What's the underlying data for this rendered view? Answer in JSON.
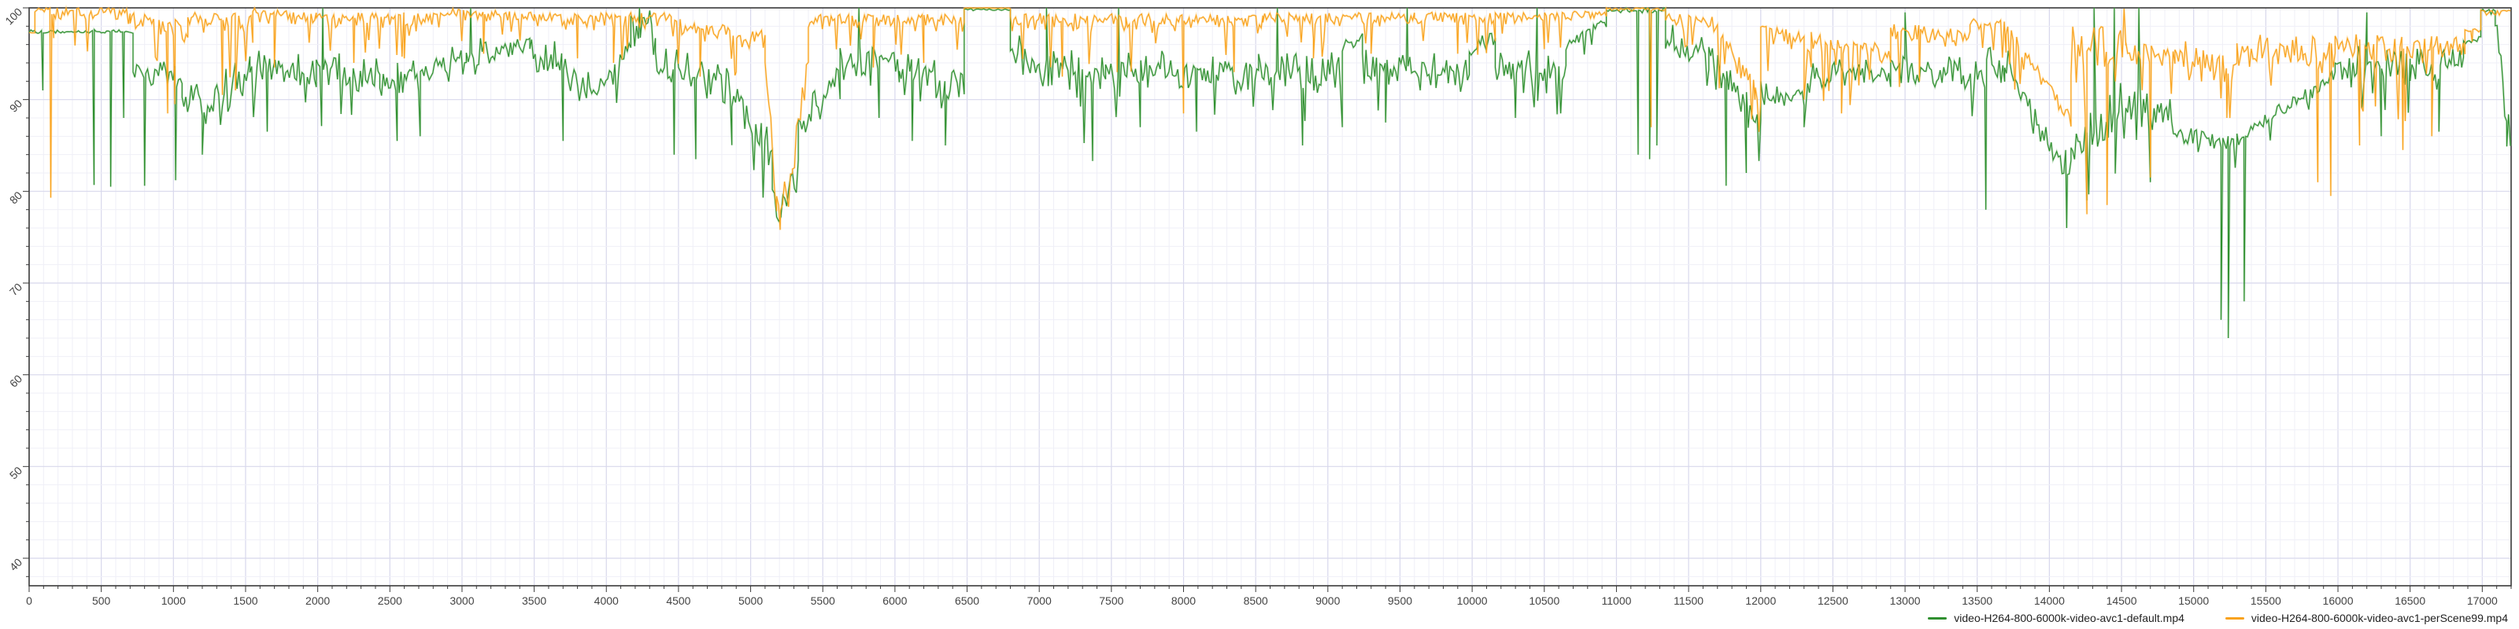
{
  "chart_data": {
    "type": "line",
    "title": "",
    "xlabel": "",
    "ylabel": "",
    "x_axis": {
      "min": 0,
      "max": 17200,
      "major_step": 500,
      "minor_step": 100,
      "ticks": [
        0,
        500,
        1000,
        1500,
        2000,
        2500,
        3000,
        3500,
        4000,
        4500,
        5000,
        5500,
        6000,
        6500,
        7000,
        7500,
        8000,
        8500,
        9000,
        9500,
        10000,
        10500,
        11000,
        11500,
        12000,
        12500,
        13000,
        13500,
        14000,
        14500,
        15000,
        15500,
        16000,
        16500,
        17000
      ]
    },
    "y_axis": {
      "min": 37,
      "max": 100,
      "major_step": 10,
      "minor_step": 2,
      "ticks": [
        40,
        50,
        60,
        70,
        80,
        90,
        100
      ]
    },
    "grid": {
      "minor_color": "#efeff7",
      "major_color": "#d8d8ec",
      "axis_color": "#3a3a3a",
      "label_color": "#444444"
    },
    "legend_position": "bottom-right",
    "sample_step": 12,
    "series": [
      {
        "name": "video-H264-800-6000k-video-avc1-default.mp4",
        "color": "#2f8f2f",
        "halo_color": "#84c284",
        "segments": [
          [
            0,
            720,
            97.4,
            97.4,
            0.25,
            "flat"
          ],
          [
            720,
            1060,
            92.8,
            92.2,
            2.0,
            "sym"
          ],
          [
            1060,
            1250,
            91.0,
            88.5,
            3.2,
            "sym"
          ],
          [
            1250,
            1530,
            90.0,
            93.0,
            3.2,
            "sym"
          ],
          [
            1530,
            1990,
            93.2,
            92.8,
            2.4,
            "sym"
          ],
          [
            1990,
            2430,
            93.5,
            91.8,
            2.8,
            "sym"
          ],
          [
            2430,
            3030,
            91.8,
            94.2,
            2.4,
            "sym"
          ],
          [
            3030,
            3470,
            94.8,
            96.2,
            1.6,
            "sym"
          ],
          [
            3470,
            3960,
            95.5,
            90.8,
            2.6,
            "sym"
          ],
          [
            3960,
            4170,
            91.5,
            96.0,
            2.4,
            "sym"
          ],
          [
            4170,
            4340,
            98.2,
            98.2,
            1.8,
            "sym"
          ],
          [
            4340,
            4870,
            93.5,
            92.0,
            3.0,
            "sym"
          ],
          [
            4870,
            5150,
            90.0,
            84.5,
            2.6,
            "sym"
          ],
          [
            5150,
            5210,
            80.0,
            76.2,
            1.2,
            "sym"
          ],
          [
            5210,
            5330,
            77.5,
            83.0,
            1.8,
            "sym"
          ],
          [
            5330,
            5620,
            86.0,
            93.0,
            2.4,
            "sym"
          ],
          [
            5620,
            6030,
            94.2,
            93.8,
            2.2,
            "sym"
          ],
          [
            6030,
            6480,
            92.5,
            91.5,
            3.0,
            "sym"
          ],
          [
            6480,
            6800,
            99.8,
            99.8,
            0.15,
            "flat"
          ],
          [
            6800,
            7000,
            95.0,
            93.5,
            2.6,
            "sym"
          ],
          [
            7000,
            7460,
            93.2,
            92.8,
            3.0,
            "sym"
          ],
          [
            7460,
            8520,
            93.2,
            93.0,
            2.6,
            "sym"
          ],
          [
            8520,
            9100,
            93.5,
            93.2,
            2.8,
            "sym"
          ],
          [
            9100,
            9240,
            95.8,
            96.8,
            0.8,
            "sym"
          ],
          [
            9240,
            9980,
            93.4,
            93.0,
            2.8,
            "sym"
          ],
          [
            9980,
            10160,
            95.5,
            96.5,
            1.2,
            "sym"
          ],
          [
            10160,
            10650,
            93.5,
            93.2,
            2.8,
            "sym"
          ],
          [
            10650,
            10930,
            96.5,
            99.0,
            1.6,
            "top"
          ],
          [
            10930,
            11340,
            99.7,
            99.7,
            0.4,
            "flat"
          ],
          [
            11340,
            11640,
            96.5,
            95.0,
            2.2,
            "sym"
          ],
          [
            11640,
            12000,
            94.5,
            87.5,
            3.0,
            "sym"
          ],
          [
            12000,
            12350,
            90.0,
            90.5,
            2.2,
            "sym"
          ],
          [
            12350,
            12900,
            92.5,
            92.8,
            2.4,
            "sym"
          ],
          [
            12900,
            13440,
            93.2,
            92.6,
            2.4,
            "sym"
          ],
          [
            13440,
            13690,
            92.5,
            94.0,
            2.6,
            "sym"
          ],
          [
            13690,
            14150,
            94.0,
            81.5,
            2.2,
            "sym"
          ],
          [
            14150,
            14530,
            84.0,
            89.5,
            3.4,
            "sym"
          ],
          [
            14530,
            14860,
            89.5,
            88.0,
            3.4,
            "sym"
          ],
          [
            14860,
            15300,
            86.2,
            85.4,
            1.4,
            "sym"
          ],
          [
            15300,
            15980,
            85.4,
            92.8,
            1.2,
            "sym"
          ],
          [
            15980,
            16500,
            93.4,
            93.8,
            2.6,
            "sym"
          ],
          [
            16500,
            16870,
            93.6,
            94.5,
            2.4,
            "sym"
          ],
          [
            16870,
            16990,
            96.2,
            96.6,
            0.4,
            "flat"
          ],
          [
            16990,
            17090,
            99.6,
            99.6,
            0.5,
            "flat"
          ],
          [
            17090,
            17195,
            98.5,
            86.0,
            1.6,
            "sym"
          ]
        ],
        "dips": [
          [
            95,
            91
          ],
          [
            450,
            80.7
          ],
          [
            565,
            80.5
          ],
          [
            655,
            88
          ],
          [
            800,
            80.6
          ],
          [
            1015,
            81.2
          ],
          [
            1200,
            84
          ],
          [
            1650,
            86.5
          ],
          [
            2035,
            100
          ],
          [
            2550,
            85.5
          ],
          [
            2710,
            86
          ],
          [
            3060,
            100
          ],
          [
            3700,
            85.5
          ],
          [
            4230,
            100
          ],
          [
            4470,
            84
          ],
          [
            4620,
            83.5
          ],
          [
            5750,
            100
          ],
          [
            5890,
            88
          ],
          [
            6120,
            85.5
          ],
          [
            6350,
            85
          ],
          [
            7050,
            100
          ],
          [
            7370,
            83.3
          ],
          [
            7550,
            100
          ],
          [
            7700,
            87
          ],
          [
            8090,
            86.5
          ],
          [
            8650,
            100
          ],
          [
            8825,
            85
          ],
          [
            9400,
            87.5
          ],
          [
            9550,
            100
          ],
          [
            10300,
            88
          ],
          [
            10450,
            100
          ],
          [
            11150,
            84
          ],
          [
            11230,
            83.5
          ],
          [
            11280,
            85
          ],
          [
            11760,
            80.6
          ],
          [
            11900,
            82
          ],
          [
            12300,
            87
          ],
          [
            13000,
            99.5
          ],
          [
            13560,
            78
          ],
          [
            14120,
            76
          ],
          [
            14260,
            79
          ],
          [
            14310,
            100
          ],
          [
            14450,
            100
          ],
          [
            14620,
            100
          ],
          [
            14700,
            81
          ],
          [
            15190,
            66
          ],
          [
            15240,
            64
          ],
          [
            15350,
            68
          ],
          [
            16200,
            99.5
          ],
          [
            16300,
            86
          ],
          [
            16700,
            86.5
          ],
          [
            17170,
            84.9
          ]
        ]
      },
      {
        "name": "video-H264-800-6000k-video-avc1-perScene99.mp4",
        "color": "#f9a21d",
        "halo_color": "#fdc96e",
        "segments": [
          [
            0,
            40,
            97.4,
            97.4,
            0.2,
            "flat"
          ],
          [
            40,
            170,
            100,
            100,
            1.4,
            "top"
          ],
          [
            170,
            700,
            100,
            100,
            1.8,
            "top"
          ],
          [
            700,
            1100,
            99.5,
            99.0,
            3.5,
            "top"
          ],
          [
            1100,
            1550,
            99.5,
            99.5,
            3.0,
            "top"
          ],
          [
            1550,
            1990,
            100,
            99.5,
            2.2,
            "top"
          ],
          [
            1990,
            2900,
            99.5,
            99.5,
            2.0,
            "top"
          ],
          [
            2900,
            3500,
            100,
            99.5,
            1.6,
            "top"
          ],
          [
            3500,
            4450,
            99.5,
            99.5,
            2.2,
            "top"
          ],
          [
            4450,
            5100,
            99.0,
            97.5,
            2.8,
            "top"
          ],
          [
            5100,
            5180,
            95.0,
            78.0,
            2.0,
            "sym"
          ],
          [
            5180,
            5290,
            79.0,
            81.0,
            2.2,
            "sym"
          ],
          [
            5290,
            5400,
            83.0,
            95.0,
            2.5,
            "sym"
          ],
          [
            5400,
            6480,
            99.3,
            99.3,
            2.2,
            "top"
          ],
          [
            6480,
            6800,
            100,
            100,
            0.12,
            "flat"
          ],
          [
            6800,
            7600,
            99.4,
            99.4,
            2.4,
            "top"
          ],
          [
            7600,
            8550,
            99.4,
            99.2,
            2.6,
            "top"
          ],
          [
            8550,
            9600,
            99.5,
            99.5,
            2.0,
            "top"
          ],
          [
            9600,
            10160,
            99.6,
            99.4,
            1.8,
            "top"
          ],
          [
            10160,
            10930,
            99.5,
            99.7,
            1.6,
            "top"
          ],
          [
            10930,
            11340,
            100,
            100,
            0.5,
            "top"
          ],
          [
            11340,
            11650,
            99.5,
            99.0,
            1.8,
            "top"
          ],
          [
            11650,
            12000,
            99.5,
            91.0,
            2.4,
            "top"
          ],
          [
            12000,
            12350,
            98.5,
            97.0,
            2.8,
            "top"
          ],
          [
            12350,
            12900,
            97.5,
            96.0,
            3.0,
            "top"
          ],
          [
            12900,
            13450,
            98.5,
            97.5,
            2.6,
            "top"
          ],
          [
            13450,
            13700,
            98.8,
            98.8,
            2.0,
            "top"
          ],
          [
            13700,
            14150,
            98.5,
            88.5,
            2.2,
            "top"
          ],
          [
            14150,
            14530,
            95.0,
            96.0,
            4.5,
            "sym"
          ],
          [
            14530,
            14870,
            96.5,
            95.5,
            3.5,
            "top"
          ],
          [
            14870,
            15300,
            94.8,
            93.2,
            2.2,
            "sym"
          ],
          [
            15300,
            15760,
            95.5,
            95.0,
            2.2,
            "sym"
          ],
          [
            15760,
            15980,
            95.0,
            94.0,
            3.5,
            "sym"
          ],
          [
            15980,
            16880,
            97.3,
            96.8,
            3.8,
            "top"
          ],
          [
            16880,
            16990,
            97.6,
            97.6,
            0.3,
            "flat"
          ],
          [
            16990,
            17195,
            99.8,
            99.8,
            0.8,
            "top"
          ]
        ],
        "dips": [
          [
            150,
            79.3
          ],
          [
            960,
            88.5
          ],
          [
            1010,
            89.5
          ],
          [
            1340,
            90.5
          ],
          [
            1430,
            91
          ],
          [
            1700,
            93.5
          ],
          [
            2250,
            94
          ],
          [
            2600,
            94.5
          ],
          [
            3150,
            95
          ],
          [
            3800,
            94.5
          ],
          [
            4050,
            94
          ],
          [
            4650,
            92.5
          ],
          [
            4900,
            93
          ],
          [
            5205,
            75.8
          ],
          [
            5850,
            93.5
          ],
          [
            6200,
            94
          ],
          [
            7160,
            92.5
          ],
          [
            7540,
            93
          ],
          [
            8000,
            88.5
          ],
          [
            8350,
            93
          ],
          [
            8900,
            94.5
          ],
          [
            9300,
            95
          ],
          [
            9900,
            95
          ],
          [
            10500,
            95.5
          ],
          [
            11240,
            87
          ],
          [
            11960,
            90
          ],
          [
            12300,
            90
          ],
          [
            12560,
            88.5
          ],
          [
            13100,
            92
          ],
          [
            14260,
            77.5
          ],
          [
            14400,
            78.5
          ],
          [
            14700,
            81.5
          ],
          [
            15230,
            88
          ],
          [
            15860,
            81
          ],
          [
            15950,
            79.5
          ],
          [
            16150,
            85
          ],
          [
            16450,
            84.5
          ],
          [
            16650,
            86
          ],
          [
            16930,
            96.3
          ]
        ]
      }
    ]
  }
}
